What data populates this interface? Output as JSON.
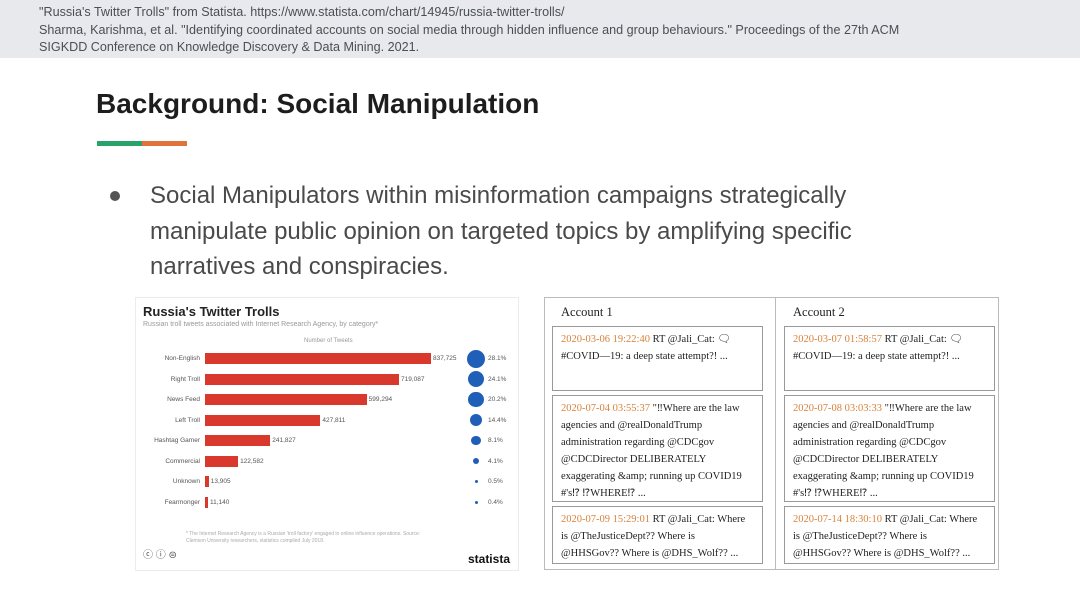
{
  "references": [
    "\"Russia's Twitter Trolls\" from Statista. https://www.statista.com/chart/14945/russia-twitter-trolls/",
    "Sharma, Karishma, et al. \"Identifying coordinated accounts on social media through hidden influence and group behaviours.\" Proceedings of the 27th ACM",
    "SIGKDD Conference on Knowledge Discovery & Data Mining. 2021."
  ],
  "slide": {
    "title": "Background: Social Manipulation",
    "bullet": "Social Manipulators within misinformation campaigns strategically manipulate public opinion on targeted topics by amplifying specific narratives and conspiracies."
  },
  "statista_chart": {
    "title": "Russia's Twitter Trolls",
    "subtitle": "Russian troll tweets associated with Internet Research Agency, by category*",
    "col_header": "Number of Tweets",
    "footnote": "* The Internet Research Agency is a Russian 'troll factory' engaged in online influence operations. Source: Clemson University researchers, statistics compiled July 2018.",
    "brand": "statista",
    "cc_icons": "ⓒ ⓘ ⊜"
  },
  "chart_data": {
    "type": "bar",
    "title": "Russia's Twitter Trolls",
    "categories": [
      "Non-English",
      "Right Troll",
      "News Feed",
      "Left Troll",
      "Hashtag Gamer",
      "Commercial",
      "Unknown",
      "Fearmonger"
    ],
    "values": [
      837725,
      719087,
      599294,
      427811,
      241827,
      122582,
      13905,
      11140
    ],
    "value_labels": [
      "837,725",
      "719,087",
      "599,294",
      "427,811",
      "241,827",
      "122,582",
      "13,905",
      "11,140"
    ],
    "percentages": [
      28.1,
      24.1,
      20.2,
      14.4,
      8.1,
      4.1,
      0.5,
      0.4
    ],
    "percent_labels": [
      "28.1%",
      "24.1%",
      "20.2%",
      "14.4%",
      "8.1%",
      "4.1%",
      "0.5%",
      "0.4%"
    ],
    "color": "#d9382c",
    "dot_color": "#1f5fb8"
  },
  "tweets": {
    "account1_label": "Account 1",
    "account2_label": "Account 2",
    "account1": [
      {
        "timestamp": "2020-03-06 19:22:40",
        "text": " RT @Jali_Cat: 🗨#COVID—19: a deep state attempt?! ..."
      },
      {
        "timestamp": "2020-07-04 03:55:37",
        "text": " \"‼Where are the law agencies and @realDonaldTrump administration regarding @CDCgov @CDCDirector DELIBERATELY exaggerating &amp; running up COVID19 #'s⁉ ⁉WHERE⁉ ..."
      },
      {
        "timestamp": "2020-07-09 15:29:01",
        "text": " RT @Jali_Cat: Where is @TheJusticeDept?? Where is @HHSGov?? Where is @DHS_Wolf?? ..."
      }
    ],
    "account2": [
      {
        "timestamp": "2020-03-07 01:58:57",
        "text": " RT @Jali_Cat: 🗨#COVID—19: a deep state attempt?! ..."
      },
      {
        "timestamp": "2020-07-08 03:03:33",
        "text": " \"‼Where are the law agencies and @realDonaldTrump administration regarding @CDCgov @CDCDirector DELIBERATELY exaggerating &amp; running up COVID19 #'s⁉ ⁉WHERE⁉ ..."
      },
      {
        "timestamp": "2020-07-14 18:30:10",
        "text": " RT @Jali_Cat: Where is @TheJusticeDept?? Where is @HHSGov?? Where is @DHS_Wolf?? ..."
      }
    ]
  }
}
